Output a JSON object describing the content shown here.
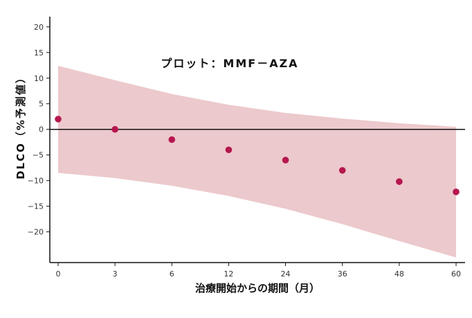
{
  "chart_data": {
    "type": "scatter",
    "title": "プロット：MMF－AZA",
    "xlabel": "治療開始からの期間（月）",
    "ylabel": "DLCO（%予測値）",
    "x_categories": [
      "0",
      "3",
      "6",
      "12",
      "24",
      "36",
      "48",
      "60"
    ],
    "y_ticks": [
      20,
      15,
      10,
      5,
      0,
      -5,
      -10,
      -15,
      -20
    ],
    "y_tick_labels": [
      "20",
      "15",
      "10",
      "5",
      "0",
      "−5",
      "−10",
      "−15",
      "−20"
    ],
    "ylim": [
      -26,
      22
    ],
    "series": [
      {
        "name": "MMF-AZA",
        "values": [
          2.0,
          0.0,
          -2.0,
          -4.0,
          -6.0,
          -8.0,
          -10.2,
          -12.2
        ]
      }
    ],
    "ci_band": {
      "upper": [
        12.4,
        9.6,
        6.9,
        4.8,
        3.2,
        2.1,
        1.2,
        0.5
      ],
      "lower": [
        -8.5,
        -9.5,
        -11.0,
        -13.0,
        -15.5,
        -18.5,
        -21.8,
        -25.0
      ]
    },
    "reference_line": 0,
    "colors": {
      "point": "#b5174e",
      "band": "#ecc9cc",
      "axis": "#111111",
      "text": "#333333"
    }
  }
}
